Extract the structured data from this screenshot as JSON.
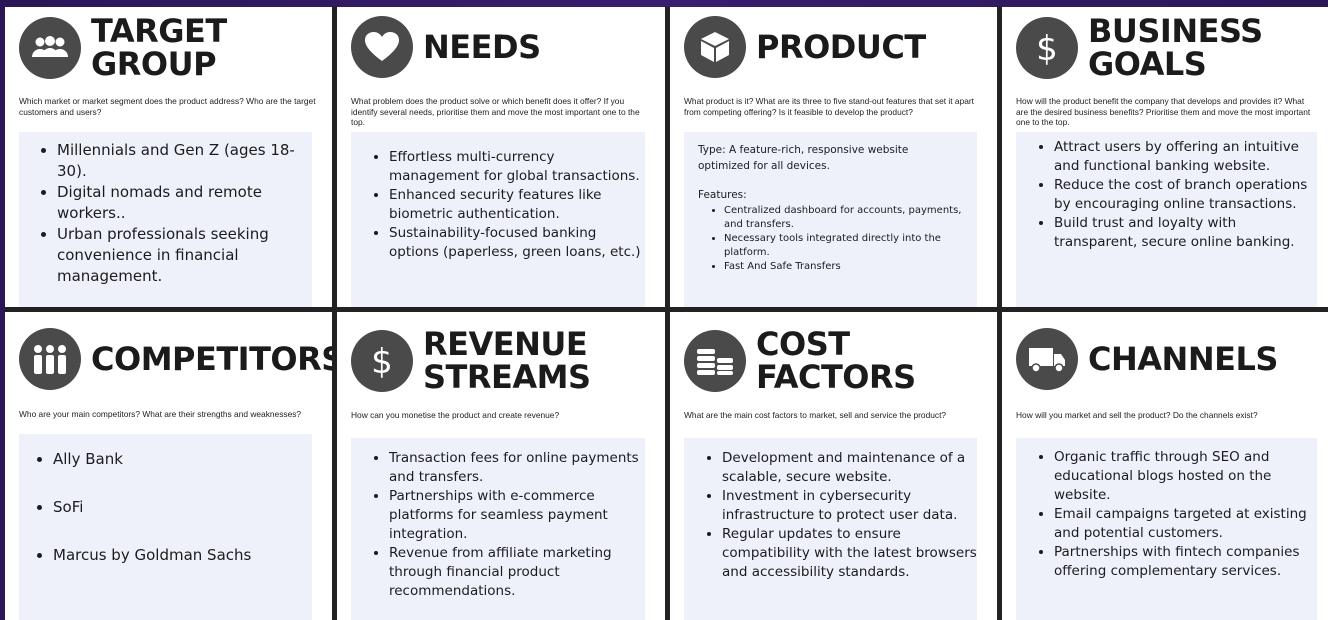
{
  "cards": {
    "target_group": {
      "title_l1": "TARGET",
      "title_l2": "GROUP",
      "question": "Which market or market segment does the product address? Who are the target customers and users?",
      "items": [
        "Millennials and Gen Z (ages 18-30).",
        "Digital nomads and remote workers..",
        "Urban professionals seeking convenience in financial management."
      ]
    },
    "needs": {
      "title": "NEEDS",
      "question": "What problem does the product solve or which benefit does it offer? If you identify several needs, prioritise them and move the most important one to the top.",
      "items": [
        "Effortless multi-currency management for global transactions.",
        "Enhanced security features like biometric authentication.",
        "Sustainability-focused banking options (paperless, green loans, etc.)"
      ]
    },
    "product": {
      "title": "PRODUCT",
      "question": "What product is it? What are its three to five stand-out features that set it apart from competing offering? Is it feasible to develop the product?",
      "type_text": "Type: A feature-rich, responsive website optimized for all devices.",
      "features_label": "Features:",
      "items": [
        "Centralized dashboard for accounts, payments, and transfers.",
        "Necessary tools integrated directly into the platform.",
        "Fast And Safe Transfers"
      ]
    },
    "business_goals": {
      "title_l1": "BUSINESS",
      "title_l2": "GOALS",
      "question": "How will the product benefit the company that develops and provides it? What are the desired business benefits? Prioritise them and move the most important one to the top.",
      "items": [
        "Attract users by offering an intuitive and functional banking website.",
        "Reduce the cost of branch operations by encouraging online transactions.",
        "Build trust and loyalty with transparent, secure online banking."
      ]
    },
    "competitors": {
      "title": "COMPETITORS",
      "question": "Who are your main competitors? What are their strengths and weaknesses?",
      "items": [
        "Ally Bank",
        "SoFi",
        "Marcus by Goldman Sachs"
      ]
    },
    "revenue_streams": {
      "title_l1": "REVENUE",
      "title_l2": "STREAMS",
      "question": "How can you monetise the product and create revenue?",
      "items": [
        "Transaction fees for online payments and transfers.",
        "Partnerships with e-commerce platforms for seamless payment integration.",
        "Revenue from affiliate marketing through financial product recommendations."
      ]
    },
    "cost_factors": {
      "title_l1": "COST",
      "title_l2": "FACTORS",
      "question": "What are the main cost factors to market, sell and service the product?",
      "items": [
        "Development and maintenance of a scalable, secure website.",
        "Investment in cybersecurity infrastructure to protect user data.",
        "Regular updates to ensure compatibility with the latest browsers and accessibility standards."
      ]
    },
    "channels": {
      "title": "CHANNELS",
      "question": "How will you market and sell the product? Do the channels exist?",
      "items": [
        "Organic traffic through SEO and educational blogs hosted on the website.",
        "Email campaigns targeted at existing and potential customers.",
        "Partnerships with fintech companies offering complementary services."
      ]
    }
  },
  "icons": {
    "target_group": "people-group-icon",
    "needs": "heart-icon",
    "product": "box-icon",
    "business_goals": "dollar-icon",
    "competitors": "people-icon",
    "revenue_streams": "dollar-icon",
    "cost_factors": "coins-icon",
    "channels": "truck-icon"
  },
  "colors": {
    "icon_bg": "#4a4a4a",
    "box_bg": "#eef1fa",
    "background": "#2b1657"
  }
}
